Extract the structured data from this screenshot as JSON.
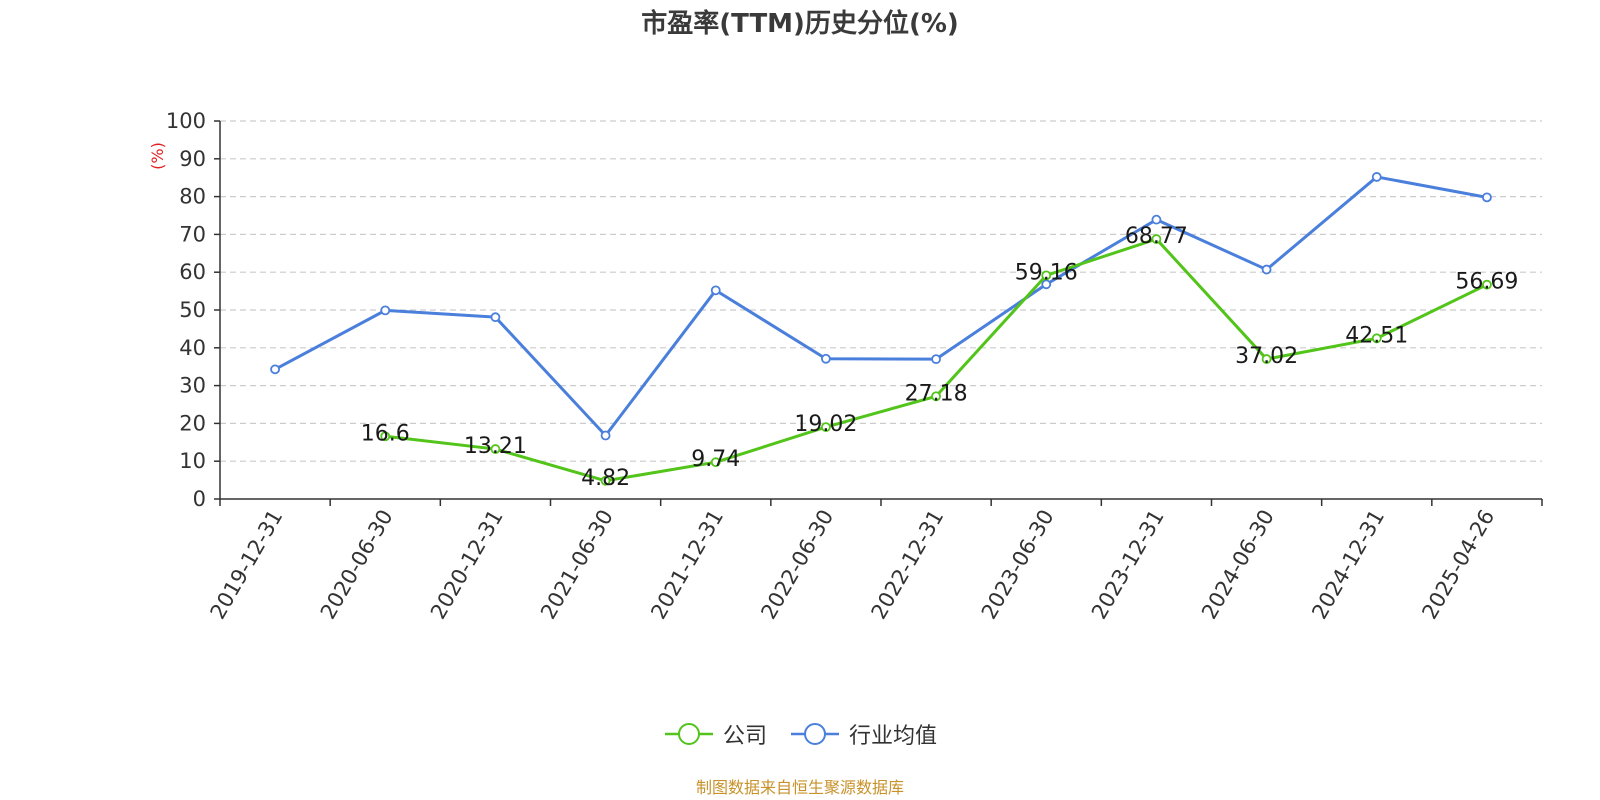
{
  "chart_data": {
    "type": "line",
    "title": "市盈率(TTM)历史分位(%)",
    "ylabel": "(%)",
    "xlabel": "",
    "ylim": [
      0,
      100
    ],
    "ytick_step": 10,
    "grid": true,
    "legend_placement": "bottom-center",
    "categories": [
      "2019-12-31",
      "2020-06-30",
      "2020-12-31",
      "2021-06-30",
      "2021-12-31",
      "2022-06-30",
      "2022-12-31",
      "2023-06-30",
      "2023-12-31",
      "2024-06-30",
      "2024-12-31",
      "2025-04-26"
    ],
    "series": [
      {
        "name": "公司",
        "color": "#52c41a",
        "show_labels": true,
        "values": [
          null,
          16.6,
          13.21,
          4.82,
          9.74,
          19.02,
          27.18,
          59.16,
          68.77,
          37.02,
          42.51,
          56.69
        ]
      },
      {
        "name": "行业均值",
        "color": "#4a7fdc",
        "show_labels": false,
        "values": [
          34.3,
          49.9,
          48.1,
          16.8,
          55.2,
          37.1,
          37.0,
          56.8,
          73.9,
          60.7,
          85.2,
          79.8
        ]
      }
    ],
    "ylabel_color": "#e02020"
  },
  "source_note": "制图数据来自恒生聚源数据库"
}
